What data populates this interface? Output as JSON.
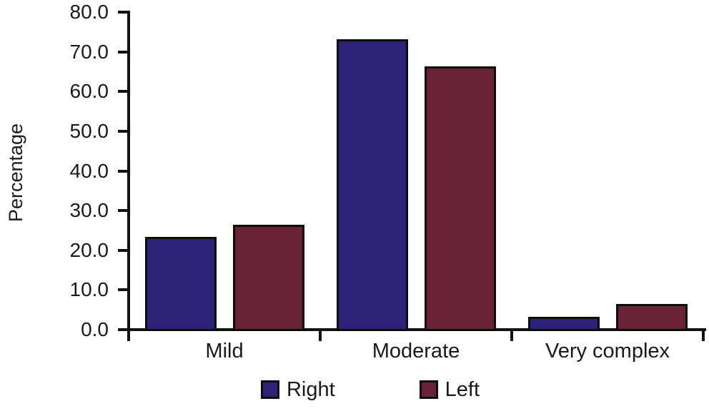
{
  "chart_data": {
    "type": "bar",
    "categories": [
      "Mild",
      "Moderate",
      "Very complex"
    ],
    "series": [
      {
        "name": "Right",
        "color": "#2d2178",
        "values": [
          23.3,
          73.2,
          3.3
        ]
      },
      {
        "name": "Left",
        "color": "#6a2336",
        "values": [
          26.4,
          66.4,
          6.4
        ]
      }
    ],
    "title": "",
    "xlabel": "",
    "ylabel": "Percentage",
    "ylim": [
      0,
      80
    ],
    "ytick_step": 10,
    "ytick_labels": [
      "0.0",
      "10.0",
      "20.0",
      "30.0",
      "40.0",
      "50.0",
      "60.0",
      "70.0",
      "80.0"
    ],
    "grid": false,
    "legend_position": "bottom",
    "legend_labels": [
      "Right",
      "Left"
    ]
  }
}
